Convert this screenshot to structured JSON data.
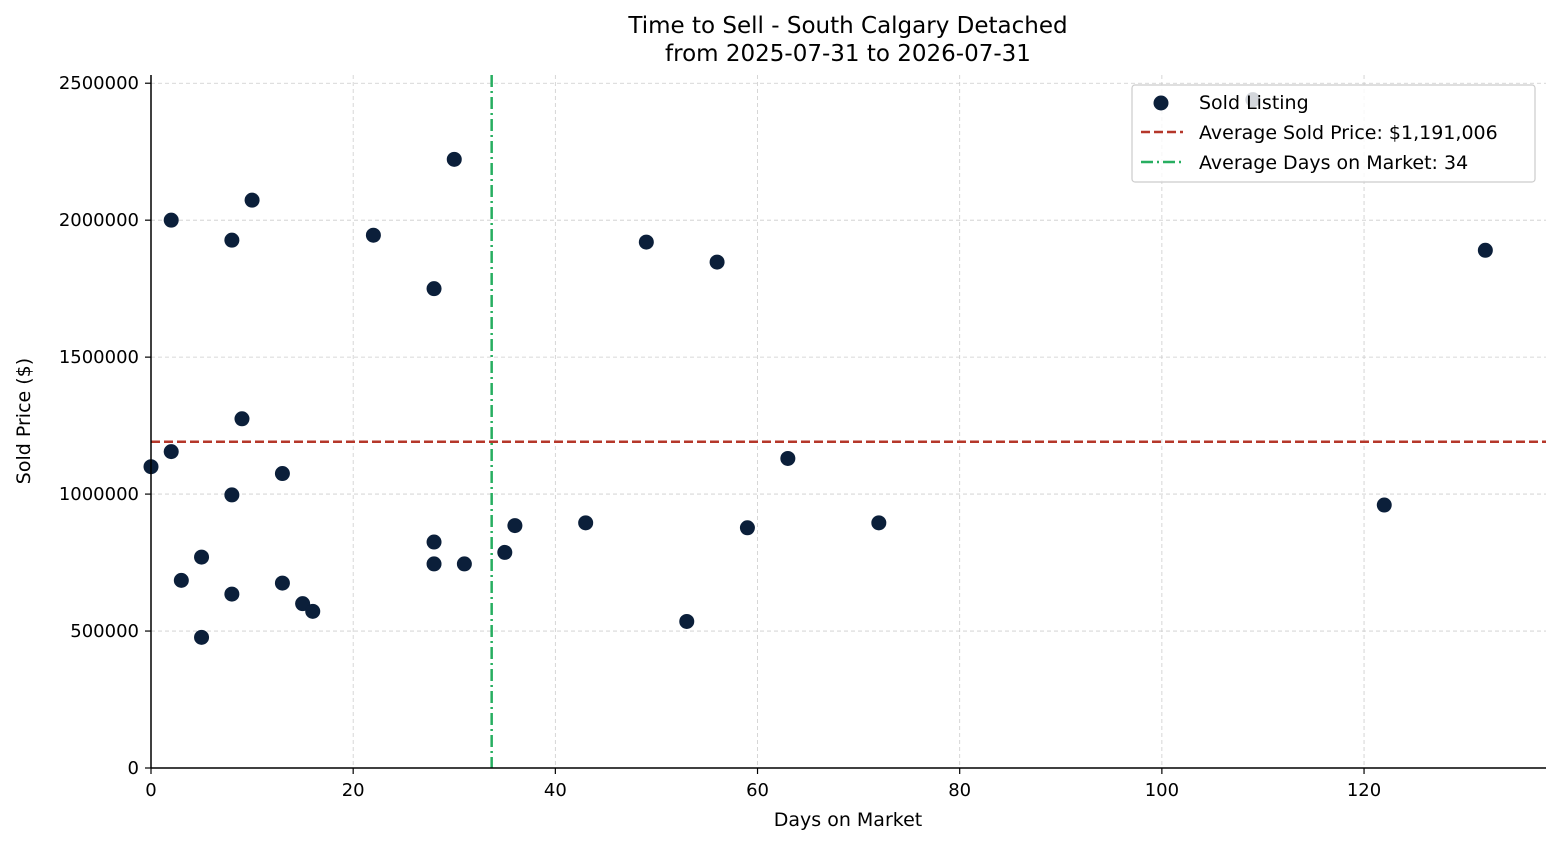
{
  "chart_data": {
    "type": "scatter",
    "title": "Time to Sell - South Calgary Detached",
    "subtitle": "from 2025-07-31 to 2026-07-31",
    "xlabel": "Days on Market",
    "ylabel": "Sold Price ($)",
    "xlim": [
      0,
      138
    ],
    "ylim": [
      0,
      2530000
    ],
    "x_ticks": [
      0,
      20,
      40,
      60,
      80,
      100,
      120
    ],
    "y_ticks": [
      0,
      500000,
      1000000,
      1500000,
      2000000,
      2500000
    ],
    "grid": true,
    "legend_position": "top-right",
    "series": [
      {
        "name": "Sold Listing",
        "color": "#0b1f3a",
        "points": [
          {
            "x": 0,
            "y": 1100000
          },
          {
            "x": 2,
            "y": 2000000
          },
          {
            "x": 2,
            "y": 1155000
          },
          {
            "x": 3,
            "y": 685000
          },
          {
            "x": 5,
            "y": 770000
          },
          {
            "x": 5,
            "y": 477000
          },
          {
            "x": 8,
            "y": 1927000
          },
          {
            "x": 8,
            "y": 997000
          },
          {
            "x": 8,
            "y": 635000
          },
          {
            "x": 9,
            "y": 1275000
          },
          {
            "x": 10,
            "y": 2073000
          },
          {
            "x": 13,
            "y": 1075000
          },
          {
            "x": 13,
            "y": 675000
          },
          {
            "x": 15,
            "y": 600000
          },
          {
            "x": 16,
            "y": 572000
          },
          {
            "x": 22,
            "y": 1945000
          },
          {
            "x": 28,
            "y": 1750000
          },
          {
            "x": 28,
            "y": 825000
          },
          {
            "x": 28,
            "y": 745000
          },
          {
            "x": 30,
            "y": 2222000
          },
          {
            "x": 31,
            "y": 745000
          },
          {
            "x": 35,
            "y": 787000
          },
          {
            "x": 36,
            "y": 885000
          },
          {
            "x": 43,
            "y": 895000
          },
          {
            "x": 49,
            "y": 1920000
          },
          {
            "x": 53,
            "y": 535000
          },
          {
            "x": 56,
            "y": 1847000
          },
          {
            "x": 59,
            "y": 877000
          },
          {
            "x": 63,
            "y": 1130000
          },
          {
            "x": 72,
            "y": 895000
          },
          {
            "x": 109,
            "y": 2440000
          },
          {
            "x": 122,
            "y": 960000
          },
          {
            "x": 132,
            "y": 1890000
          }
        ]
      }
    ],
    "reference_lines": [
      {
        "name": "Average Sold Price: $1,191,006",
        "orientation": "horizontal",
        "value": 1191006,
        "color": "#b5372a",
        "style": "dashed"
      },
      {
        "name": "Average Days on Market: 34",
        "orientation": "vertical",
        "value": 33.7,
        "color": "#27ae60",
        "style": "dashdot"
      }
    ]
  }
}
